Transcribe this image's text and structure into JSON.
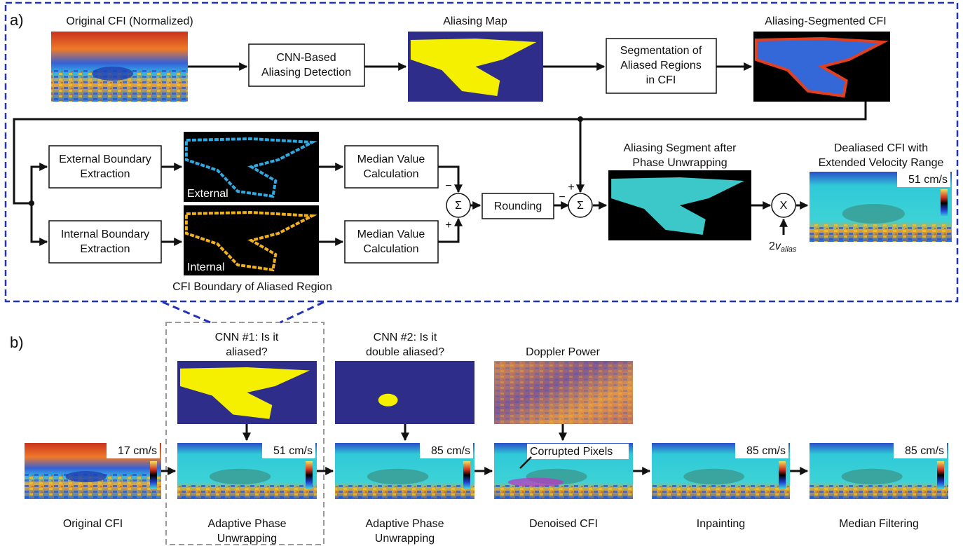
{
  "panel_a": {
    "label": "a)",
    "original_title": "Original CFI (Normalized)",
    "cnn_box": [
      "CNN-Based",
      "Aliasing Detection"
    ],
    "map_title": "Aliasing Map",
    "segmentation_box": [
      "Segmentation of",
      "Aliased Regions",
      "in CFI"
    ],
    "segmented_title": "Aliasing-Segmented CFI",
    "external_box": [
      "External Boundary",
      "Extraction"
    ],
    "internal_box": [
      "Internal Boundary",
      "Extraction"
    ],
    "external_label": "External",
    "internal_label": "Internal",
    "boundary_caption": "CFI Boundary of Aliased Region",
    "median_box_1": [
      "Median Value",
      "Calculation"
    ],
    "median_box_2": [
      "Median Value",
      "Calculation"
    ],
    "sum_1": {
      "symbol": "Σ",
      "top_sign": "−",
      "bottom_sign": "+"
    },
    "rounding_box": "Rounding",
    "sum_2": {
      "symbol": "Σ",
      "left_sign": "−",
      "top_sign": "+"
    },
    "unwrapped_title": [
      "Aliasing Segment after",
      "Phase Unwrapping"
    ],
    "multiply": "X",
    "multiplier": {
      "coefficient": "2",
      "symbol": "v",
      "subscript": "alias"
    },
    "dealiased_title": [
      "Dealiased CFI with",
      "Extended Velocity Range"
    ],
    "dealiased_velocity": "51 cm/s"
  },
  "panel_b": {
    "label": "b)",
    "cnn1_title": [
      "CNN #1: Is it",
      "aliased?"
    ],
    "cnn2_title": [
      "CNN #2: Is it",
      "double aliased?"
    ],
    "doppler_title": "Doppler Power",
    "corrupted_label": "Corrupted Pixels",
    "steps": [
      {
        "velocity": "17 cm/s",
        "caption": [
          "Original CFI"
        ]
      },
      {
        "velocity": "51 cm/s",
        "caption": [
          "Adaptive Phase",
          "Unwrapping"
        ]
      },
      {
        "velocity": "85 cm/s",
        "caption": [
          "Adaptive Phase",
          "Unwrapping"
        ]
      },
      {
        "velocity": null,
        "caption": [
          "Denoised CFI"
        ]
      },
      {
        "velocity": "85 cm/s",
        "caption": [
          "Inpainting"
        ]
      },
      {
        "velocity": "85 cm/s",
        "caption": [
          "Median Filtering"
        ]
      }
    ]
  }
}
